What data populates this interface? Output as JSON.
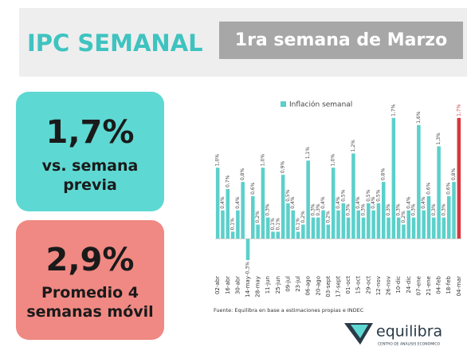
{
  "header": {
    "title": "IPC SEMANAL",
    "subtitle": "1ra semana de Marzo"
  },
  "cards": [
    {
      "value": "1,7%",
      "label": "vs. semana previa"
    },
    {
      "value": "2,9%",
      "label": "Promedio 4 semanas móvil"
    }
  ],
  "chart_data": {
    "type": "bar",
    "legend": "Inflación semanal",
    "source": "Fuente: Equilibra en base a estimaciones propias e INDEC",
    "categories": [
      "02-abr",
      null,
      "16-abr",
      null,
      "30-abr",
      null,
      "14-may",
      null,
      "28-may",
      null,
      "11-jun",
      null,
      "25-jun",
      null,
      "09-jul",
      null,
      "23-jul",
      null,
      "06-ago",
      null,
      "20-ago",
      null,
      "03-sept",
      null,
      "17-sept",
      null,
      "01-oct",
      null,
      "15-oct",
      null,
      "29-oct",
      null,
      "12-nov",
      null,
      "26-nov",
      null,
      "10-dic",
      null,
      "24-dic",
      null,
      "07-ene",
      null,
      "21-ene",
      null,
      "04-feb",
      null,
      "18-feb",
      null,
      "04-mar"
    ],
    "series": [
      {
        "name": "Inflación semanal",
        "color": "#5cd0cb",
        "highlight_color": "#d7373d",
        "values": [
          1.0,
          0.4,
          0.7,
          0.1,
          0.4,
          0.8,
          -0.3,
          0.6,
          0.2,
          1.0,
          0.3,
          0.1,
          0.1,
          0.9,
          0.5,
          0.4,
          0.1,
          0.2,
          1.1,
          0.3,
          0.3,
          0.4,
          0.2,
          1.0,
          0.4,
          0.5,
          0.3,
          1.2,
          0.4,
          0.3,
          0.5,
          0.4,
          0.5,
          0.8,
          0.3,
          1.7,
          0.3,
          0.2,
          0.4,
          0.3,
          1.6,
          0.4,
          0.6,
          0.3,
          1.3,
          0.3,
          0.6,
          0.8,
          1.7
        ],
        "value_labels": [
          "1,0%",
          "0,4%",
          "0,7%",
          "0,1%",
          "0,4%",
          "0,8%",
          "-0,3%",
          "0,6%",
          "0,2%",
          "1,0%",
          "0,3%",
          "0,1%",
          "0,1%",
          "0,9%",
          "0,5%",
          "0,4%",
          "0,1%",
          "0,2%",
          "1,1%",
          "0,3%",
          "0,3%",
          "0,4%",
          "0,2%",
          "1,0%",
          "0,4%",
          "0,5%",
          "0,3%",
          "1,2%",
          "0,4%",
          "0,3%",
          "0,5%",
          "0,4%",
          "0,5%",
          "0,8%",
          "0,3%",
          "1,7%",
          "0,3%",
          "0,2%",
          "0,4%",
          "0,3%",
          "1,6%",
          "0,4%",
          "0,6%",
          "0,3%",
          "1,3%",
          "0,3%",
          "0,6%",
          "0,8%",
          "1,7%"
        ]
      }
    ],
    "ylim": [
      -0.4,
      1.9
    ]
  },
  "logo": {
    "name": "equilibra",
    "tagline": "CENTRO DE ANÁLISIS ECONÓMICO"
  }
}
